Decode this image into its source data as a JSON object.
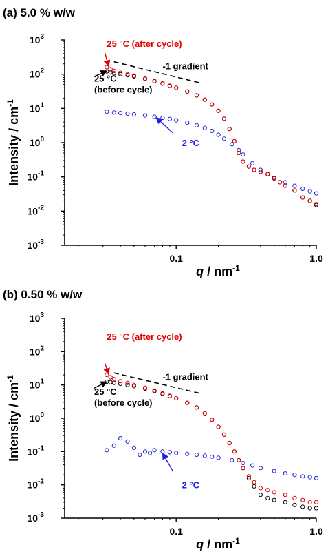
{
  "chart_data": [
    {
      "type": "scatter",
      "panel_label": "(a) 5.0 % w/w",
      "xlabel": "q / nm",
      "xlabel_sup": "-1",
      "ylabel": "Intensity / cm",
      "ylabel_sup": "-1",
      "x_scale": "log",
      "y_scale": "log",
      "xlim": [
        0.016,
        1.0
      ],
      "ylim": [
        0.001,
        1000
      ],
      "x_ticks": [
        {
          "value": 0.1,
          "label": "0.1"
        },
        {
          "value": 1.0,
          "label": "1.0"
        }
      ],
      "y_ticks": [
        {
          "value": 0.001,
          "base": "10",
          "exp": "-3"
        },
        {
          "value": 0.01,
          "base": "10",
          "exp": "-2"
        },
        {
          "value": 0.1,
          "base": "10",
          "exp": "-1"
        },
        {
          "value": 1,
          "base": "10",
          "exp": "0"
        },
        {
          "value": 10,
          "base": "10",
          "exp": "1"
        },
        {
          "value": 100,
          "base": "10",
          "exp": "2"
        },
        {
          "value": 1000,
          "base": "10",
          "exp": "3"
        }
      ],
      "grid": false,
      "marker": "open-circle",
      "series": [
        {
          "color": "#e00000",
          "points": [
            [
              0.032,
              160
            ],
            [
              0.034,
              140
            ],
            [
              0.036,
              125
            ],
            [
              0.04,
              110
            ],
            [
              0.045,
              100
            ],
            [
              0.05,
              90
            ],
            [
              0.06,
              75
            ],
            [
              0.07,
              63
            ],
            [
              0.08,
              54
            ],
            [
              0.09,
              46
            ],
            [
              0.1,
              40
            ],
            [
              0.12,
              31
            ],
            [
              0.14,
              24
            ],
            [
              0.16,
              18
            ],
            [
              0.18,
              13
            ],
            [
              0.2,
              8.5
            ],
            [
              0.22,
              5
            ],
            [
              0.24,
              2.5
            ],
            [
              0.26,
              1.1
            ],
            [
              0.28,
              0.5
            ],
            [
              0.3,
              0.28
            ],
            [
              0.33,
              0.2
            ],
            [
              0.36,
              0.16
            ],
            [
              0.4,
              0.14
            ],
            [
              0.45,
              0.12
            ],
            [
              0.5,
              0.09
            ],
            [
              0.55,
              0.07
            ],
            [
              0.6,
              0.055
            ],
            [
              0.7,
              0.04
            ],
            [
              0.8,
              0.025
            ],
            [
              0.9,
              0.02
            ],
            [
              1.0,
              0.016
            ]
          ]
        },
        {
          "color": "#000000",
          "points": [
            [
              0.032,
              120
            ],
            [
              0.034,
              112
            ],
            [
              0.036,
              106
            ],
            [
              0.04,
              100
            ],
            [
              0.045,
              93
            ],
            [
              0.05,
              86
            ],
            [
              0.06,
              73
            ],
            [
              0.07,
              62
            ],
            [
              0.08,
              53
            ],
            [
              0.09,
              45
            ],
            [
              0.1,
              40
            ],
            [
              0.12,
              31
            ],
            [
              0.14,
              24
            ],
            [
              0.16,
              18
            ],
            [
              0.18,
              13
            ],
            [
              0.2,
              8.5
            ],
            [
              0.22,
              5
            ],
            [
              0.24,
              2.5
            ],
            [
              0.26,
              1.1
            ],
            [
              0.28,
              0.5
            ],
            [
              0.3,
              0.28
            ],
            [
              0.33,
              0.2
            ],
            [
              0.36,
              0.16
            ],
            [
              0.4,
              0.14
            ],
            [
              0.45,
              0.12
            ],
            [
              0.5,
              0.09
            ],
            [
              0.55,
              0.07
            ],
            [
              0.6,
              0.055
            ],
            [
              0.7,
              0.04
            ],
            [
              0.8,
              0.025
            ],
            [
              0.9,
              0.02
            ],
            [
              1.0,
              0.015
            ]
          ]
        },
        {
          "color": "#2020e0",
          "points": [
            [
              0.032,
              8
            ],
            [
              0.036,
              7.6
            ],
            [
              0.04,
              7.3
            ],
            [
              0.045,
              7
            ],
            [
              0.05,
              6.7
            ],
            [
              0.06,
              6.2
            ],
            [
              0.07,
              5.7
            ],
            [
              0.08,
              5.3
            ],
            [
              0.09,
              4.9
            ],
            [
              0.1,
              4.5
            ],
            [
              0.12,
              3.8
            ],
            [
              0.14,
              3.2
            ],
            [
              0.16,
              2.7
            ],
            [
              0.18,
              2.2
            ],
            [
              0.2,
              1.7
            ],
            [
              0.22,
              1.3
            ],
            [
              0.25,
              0.9
            ],
            [
              0.28,
              0.6
            ],
            [
              0.3,
              0.45
            ],
            [
              0.35,
              0.25
            ],
            [
              0.4,
              0.16
            ],
            [
              0.45,
              0.12
            ],
            [
              0.5,
              0.095
            ],
            [
              0.6,
              0.07
            ],
            [
              0.7,
              0.055
            ],
            [
              0.8,
              0.045
            ],
            [
              0.9,
              0.038
            ],
            [
              1.0,
              0.033
            ]
          ]
        }
      ],
      "guide_line": {
        "x": [
          0.036,
          0.15
        ],
        "y": [
          230,
          55
        ],
        "label": "-1 gradient",
        "label_at": [
          0.08,
          140
        ]
      },
      "annotations": [
        {
          "lines": [
            "25 °C (after cycle)"
          ],
          "color": "#e00000",
          "text_at": [
            0.032,
            630
          ],
          "arrow_from": [
            0.031,
            420
          ],
          "arrow_to": [
            0.033,
            170
          ]
        },
        {
          "lines": [
            "25 °C",
            "(before cycle)"
          ],
          "color": "#000000",
          "text_at": [
            0.026,
            60
          ],
          "arrow_from": [
            0.026,
            85
          ],
          "arrow_to": [
            0.032,
            125
          ]
        },
        {
          "lines": [
            "2 °C"
          ],
          "color": "#2020e0",
          "text_at": [
            0.11,
            0.8
          ],
          "arrow_from": [
            0.095,
            1.9
          ],
          "arrow_to": [
            0.072,
            5.4
          ]
        }
      ]
    },
    {
      "type": "scatter",
      "panel_label": "(b) 0.50 % w/w",
      "xlabel": "q / nm",
      "xlabel_sup": "-1",
      "ylabel": "Intensity / cm",
      "ylabel_sup": "-1",
      "x_scale": "log",
      "y_scale": "log",
      "xlim": [
        0.016,
        1.0
      ],
      "ylim": [
        0.001,
        1000
      ],
      "x_ticks": [
        {
          "value": 0.1,
          "label": "0.1"
        },
        {
          "value": 1.0,
          "label": "1.0"
        }
      ],
      "y_ticks": [
        {
          "value": 0.001,
          "base": "10",
          "exp": "-3"
        },
        {
          "value": 0.01,
          "base": "10",
          "exp": "-2"
        },
        {
          "value": 0.1,
          "base": "10",
          "exp": "-1"
        },
        {
          "value": 1,
          "base": "10",
          "exp": "0"
        },
        {
          "value": 10,
          "base": "10",
          "exp": "1"
        },
        {
          "value": 100,
          "base": "10",
          "exp": "2"
        },
        {
          "value": 1000,
          "base": "10",
          "exp": "3"
        }
      ],
      "grid": false,
      "marker": "open-circle",
      "series": [
        {
          "color": "#e00000",
          "points": [
            [
              0.032,
              20
            ],
            [
              0.034,
              17
            ],
            [
              0.036,
              15
            ],
            [
              0.04,
              13
            ],
            [
              0.045,
              11.5
            ],
            [
              0.05,
              10
            ],
            [
              0.06,
              8.2
            ],
            [
              0.07,
              6.8
            ],
            [
              0.08,
              5.6
            ],
            [
              0.09,
              4.7
            ],
            [
              0.1,
              4
            ],
            [
              0.12,
              2.9
            ],
            [
              0.14,
              2.1
            ],
            [
              0.16,
              1.4
            ],
            [
              0.18,
              0.9
            ],
            [
              0.2,
              0.55
            ],
            [
              0.22,
              0.32
            ],
            [
              0.24,
              0.18
            ],
            [
              0.26,
              0.1
            ],
            [
              0.28,
              0.055
            ],
            [
              0.3,
              0.032
            ],
            [
              0.33,
              0.018
            ],
            [
              0.36,
              0.012
            ],
            [
              0.4,
              0.008
            ],
            [
              0.45,
              0.007
            ],
            [
              0.5,
              0.006
            ],
            [
              0.6,
              0.005
            ],
            [
              0.7,
              0.004
            ],
            [
              0.8,
              0.0035
            ],
            [
              0.9,
              0.003
            ],
            [
              1.0,
              0.003
            ]
          ]
        },
        {
          "color": "#000000",
          "points": [
            [
              0.032,
              12.5
            ],
            [
              0.034,
              12
            ],
            [
              0.036,
              11.5
            ],
            [
              0.04,
              10.8
            ],
            [
              0.045,
              10
            ],
            [
              0.05,
              9.2
            ],
            [
              0.06,
              7.8
            ],
            [
              0.07,
              6.5
            ],
            [
              0.08,
              5.4
            ],
            [
              0.09,
              4.6
            ],
            [
              0.1,
              4
            ],
            [
              0.12,
              2.9
            ],
            [
              0.14,
              2.1
            ],
            [
              0.16,
              1.4
            ],
            [
              0.18,
              0.9
            ],
            [
              0.2,
              0.55
            ],
            [
              0.22,
              0.32
            ],
            [
              0.24,
              0.18
            ],
            [
              0.26,
              0.1
            ],
            [
              0.28,
              0.055
            ],
            [
              0.3,
              0.032
            ],
            [
              0.33,
              0.016
            ],
            [
              0.36,
              0.009
            ],
            [
              0.4,
              0.005
            ],
            [
              0.45,
              0.004
            ],
            [
              0.5,
              0.0035
            ],
            [
              0.6,
              0.003
            ],
            [
              0.7,
              0.0025
            ],
            [
              0.8,
              0.0022
            ],
            [
              0.9,
              0.002
            ],
            [
              1.0,
              0.002
            ]
          ]
        },
        {
          "color": "#2020e0",
          "points": [
            [
              0.032,
              0.11
            ],
            [
              0.036,
              0.15
            ],
            [
              0.04,
              0.25
            ],
            [
              0.045,
              0.2
            ],
            [
              0.05,
              0.13
            ],
            [
              0.055,
              0.08
            ],
            [
              0.06,
              0.1
            ],
            [
              0.065,
              0.09
            ],
            [
              0.07,
              0.11
            ],
            [
              0.08,
              0.1
            ],
            [
              0.09,
              0.095
            ],
            [
              0.1,
              0.09
            ],
            [
              0.12,
              0.085
            ],
            [
              0.14,
              0.08
            ],
            [
              0.16,
              0.075
            ],
            [
              0.18,
              0.07
            ],
            [
              0.2,
              0.065
            ],
            [
              0.25,
              0.055
            ],
            [
              0.3,
              0.045
            ],
            [
              0.35,
              0.038
            ],
            [
              0.4,
              0.032
            ],
            [
              0.5,
              0.026
            ],
            [
              0.6,
              0.022
            ],
            [
              0.7,
              0.02
            ],
            [
              0.8,
              0.018
            ],
            [
              0.9,
              0.017
            ],
            [
              1.0,
              0.016
            ]
          ]
        }
      ],
      "guide_line": {
        "x": [
          0.036,
          0.15
        ],
        "y": [
          23,
          5.5
        ],
        "label": "-1 gradient",
        "label_at": [
          0.08,
          14
        ]
      },
      "annotations": [
        {
          "lines": [
            "25 °C (after cycle)"
          ],
          "color": "#e00000",
          "text_at": [
            0.032,
            230
          ],
          "arrow_from": [
            0.031,
            45
          ],
          "arrow_to": [
            0.033,
            21
          ]
        },
        {
          "lines": [
            "25 °C",
            "(before cycle)"
          ],
          "color": "#000000",
          "text_at": [
            0.026,
            5.0
          ],
          "arrow_from": [
            0.026,
            8
          ],
          "arrow_to": [
            0.032,
            12.5
          ]
        },
        {
          "lines": [
            "2 °C"
          ],
          "color": "#2020e0",
          "text_at": [
            0.11,
            0.008
          ],
          "arrow_from": [
            0.095,
            0.025
          ],
          "arrow_to": [
            0.08,
            0.09
          ]
        }
      ]
    }
  ]
}
